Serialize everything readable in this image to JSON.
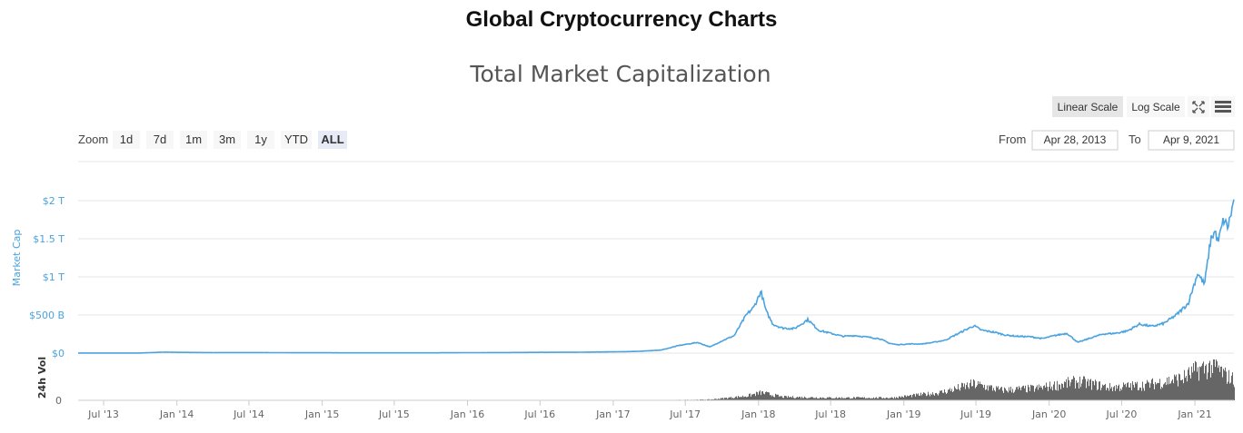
{
  "page": {
    "title": "Global Cryptocurrency Charts"
  },
  "chart_data": {
    "type": "line",
    "title": "Total Market Capitalization",
    "xlabel": "",
    "ylabel": "Market Cap",
    "volume_label": "24h Vol",
    "x_ticks": [
      "Jul '13",
      "Jan '14",
      "Jul '14",
      "Jan '15",
      "Jul '15",
      "Jan '16",
      "Jul '16",
      "Jan '17",
      "Jul '17",
      "Jan '18",
      "Jul '18",
      "Jan '19",
      "Jul '19",
      "Jan '20",
      "Jul '20",
      "Jan '21"
    ],
    "y_ticks": [
      "$0",
      "$500 B",
      "$1 T",
      "$1.5 T",
      "$2 T"
    ],
    "volume_ticks": [
      "0"
    ],
    "ylim": [
      0,
      2000
    ],
    "y_unit": "billion USD",
    "xlim": [
      "2013-04-28",
      "2021-04-09"
    ],
    "grid": true,
    "colors": {
      "market_cap": "#4aa3df",
      "volume": "#666666",
      "axis_text": "#666666"
    },
    "series": [
      {
        "name": "Market Cap",
        "x": [
          "2013-04-28",
          "2013-07-01",
          "2013-10-01",
          "2013-12-01",
          "2014-01-01",
          "2014-04-01",
          "2014-07-01",
          "2014-10-01",
          "2015-01-01",
          "2015-04-01",
          "2015-07-01",
          "2015-10-01",
          "2016-01-01",
          "2016-04-01",
          "2016-07-01",
          "2016-10-01",
          "2017-01-01",
          "2017-03-01",
          "2017-05-01",
          "2017-06-15",
          "2017-08-01",
          "2017-09-01",
          "2017-10-01",
          "2017-11-01",
          "2017-12-01",
          "2017-12-20",
          "2018-01-07",
          "2018-01-20",
          "2018-02-06",
          "2018-03-01",
          "2018-04-01",
          "2018-05-05",
          "2018-06-01",
          "2018-07-01",
          "2018-08-01",
          "2018-09-01",
          "2018-10-01",
          "2018-11-01",
          "2018-11-25",
          "2018-12-15",
          "2019-01-15",
          "2019-02-15",
          "2019-03-15",
          "2019-04-15",
          "2019-05-15",
          "2019-06-26",
          "2019-07-15",
          "2019-08-15",
          "2019-09-15",
          "2019-10-15",
          "2019-11-15",
          "2019-12-15",
          "2020-01-15",
          "2020-02-15",
          "2020-03-13",
          "2020-04-15",
          "2020-05-15",
          "2020-06-15",
          "2020-07-15",
          "2020-08-15",
          "2020-09-15",
          "2020-10-15",
          "2020-11-15",
          "2020-12-15",
          "2021-01-08",
          "2021-01-25",
          "2021-02-10",
          "2021-02-21",
          "2021-02-28",
          "2021-03-14",
          "2021-03-25",
          "2021-04-09"
        ],
        "y": [
          1.5,
          1.2,
          1.6,
          13,
          10,
          6.5,
          7.5,
          5.5,
          4.5,
          3.5,
          4,
          3.5,
          6,
          7,
          10,
          11,
          17,
          22,
          40,
          100,
          140,
          80,
          160,
          230,
          500,
          600,
          810,
          550,
          380,
          330,
          320,
          440,
          300,
          260,
          220,
          230,
          210,
          190,
          130,
          110,
          120,
          120,
          140,
          170,
          250,
          360,
          300,
          275,
          235,
          220,
          215,
          190,
          230,
          260,
          140,
          200,
          250,
          260,
          290,
          380,
          350,
          390,
          500,
          650,
          1050,
          900,
          1500,
          1600,
          1450,
          1750,
          1650,
          2000
        ]
      }
    ],
    "volume": {
      "name": "24h Vol",
      "x": [
        "2017-06-01",
        "2017-09-01",
        "2017-12-01",
        "2018-01-07",
        "2018-03-01",
        "2018-07-01",
        "2018-12-01",
        "2019-04-01",
        "2019-06-26",
        "2019-09-01",
        "2019-12-01",
        "2020-03-13",
        "2020-06-01",
        "2020-09-01",
        "2020-12-01",
        "2021-01-08",
        "2021-02-21",
        "2021-03-15",
        "2021-04-09"
      ],
      "y": [
        2,
        5,
        25,
        45,
        20,
        15,
        15,
        45,
        95,
        60,
        70,
        110,
        75,
        90,
        130,
        180,
        200,
        150,
        120
      ]
    }
  },
  "zoom": {
    "label": "Zoom",
    "buttons": [
      "1d",
      "7d",
      "1m",
      "3m",
      "1y",
      "YTD",
      "ALL"
    ],
    "active": "ALL"
  },
  "range": {
    "from_label": "From",
    "from_value": "Apr 28, 2013",
    "to_label": "To",
    "to_value": "Apr 9, 2021"
  },
  "scale": {
    "linear_label": "Linear Scale",
    "log_label": "Log Scale",
    "active": "Linear Scale"
  },
  "icons": {
    "fullscreen": "fullscreen-icon",
    "menu": "hamburger-menu-icon"
  }
}
